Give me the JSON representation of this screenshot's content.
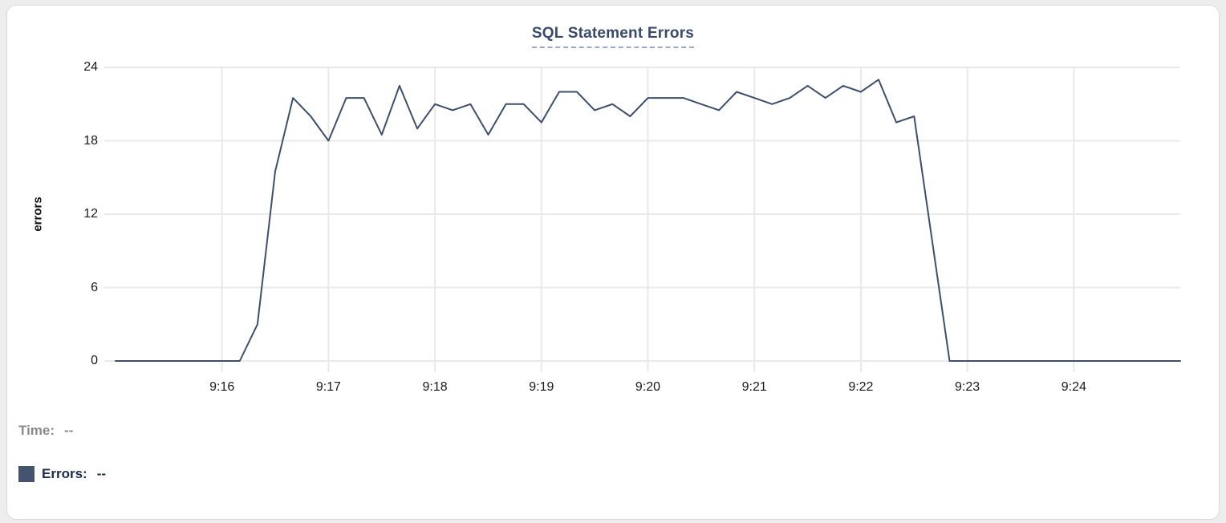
{
  "card": {
    "title": "SQL Statement Errors"
  },
  "legend": {
    "time_label": "Time:",
    "time_value": "--",
    "errors_label": "Errors:",
    "errors_value": "--",
    "swatch_color": "#44536f"
  },
  "colors": {
    "line": "#3e4e6d",
    "title": "#3a4a6b",
    "grid": "#e9e9e9",
    "tick_text": "#1a1a1a",
    "card_border": "#dadada",
    "legend_time": "#8a8a8a",
    "legend_errors": "#1b2a4e"
  },
  "chart_data": {
    "type": "line",
    "title": "SQL Statement Errors",
    "xlabel": "",
    "ylabel": "errors",
    "ylim": [
      0,
      24
    ],
    "y_ticks": [
      0,
      6,
      12,
      18,
      24
    ],
    "x_tick_labels": [
      "9:16",
      "9:17",
      "9:18",
      "9:19",
      "9:20",
      "9:21",
      "9:22",
      "9:23",
      "9:24"
    ],
    "grid": true,
    "legend_position": "bottom-left",
    "series_name": "Errors",
    "sample_interval_seconds": 10,
    "x": [
      "9:15:00",
      "9:15:10",
      "9:15:20",
      "9:15:30",
      "9:15:40",
      "9:15:50",
      "9:16:00",
      "9:16:10",
      "9:16:20",
      "9:16:30",
      "9:16:40",
      "9:16:50",
      "9:17:00",
      "9:17:10",
      "9:17:20",
      "9:17:30",
      "9:17:40",
      "9:17:50",
      "9:18:00",
      "9:18:10",
      "9:18:20",
      "9:18:30",
      "9:18:40",
      "9:18:50",
      "9:19:00",
      "9:19:10",
      "9:19:20",
      "9:19:30",
      "9:19:40",
      "9:19:50",
      "9:20:00",
      "9:20:10",
      "9:20:20",
      "9:20:30",
      "9:20:40",
      "9:20:50",
      "9:21:00",
      "9:21:10",
      "9:21:20",
      "9:21:30",
      "9:21:40",
      "9:21:50",
      "9:22:00",
      "9:22:10",
      "9:22:20",
      "9:22:30",
      "9:22:40",
      "9:22:50",
      "9:23:00",
      "9:23:10",
      "9:23:20",
      "9:23:30",
      "9:23:40",
      "9:23:50",
      "9:24:00",
      "9:24:10",
      "9:24:20",
      "9:24:30",
      "9:24:40",
      "9:24:50",
      "9:25:00"
    ],
    "values": [
      0,
      0,
      0,
      0,
      0,
      0,
      0,
      0,
      3,
      15.5,
      21.5,
      20,
      18,
      21.5,
      21.5,
      18.5,
      22.5,
      19,
      21,
      20.5,
      21,
      18.5,
      21,
      21,
      19.5,
      22,
      22,
      20.5,
      21,
      20,
      21.5,
      21.5,
      21.5,
      21,
      20.5,
      22,
      21.5,
      21,
      21.5,
      22.5,
      21.5,
      22.5,
      22,
      23,
      19.5,
      20,
      10,
      0,
      0,
      0,
      0,
      0,
      0,
      0,
      0,
      0,
      0,
      0,
      0,
      0,
      0
    ]
  }
}
